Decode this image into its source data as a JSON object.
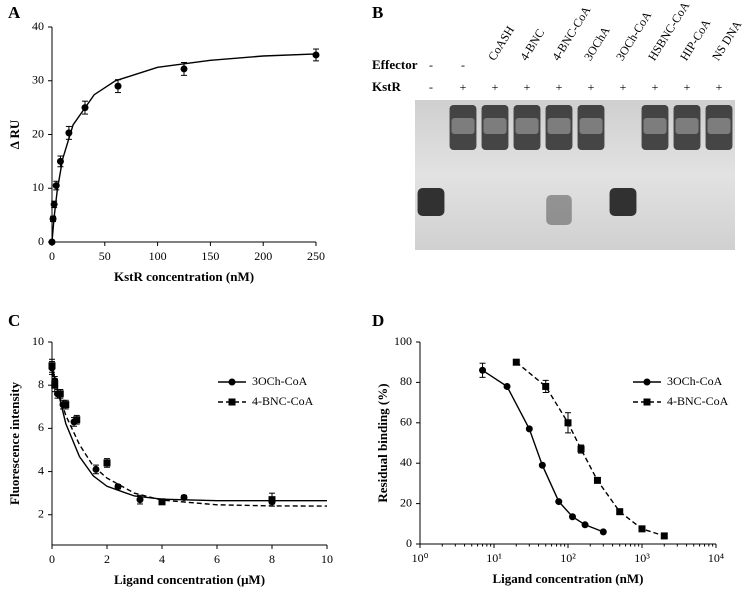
{
  "chart_data": [
    {
      "type": "scatter",
      "panel_label": "A",
      "x_label": "KstR concentration (nM)",
      "y_label": "Δ RU",
      "xlim": [
        0,
        250
      ],
      "xticks": [
        0,
        50,
        100,
        150,
        200,
        250
      ],
      "ylim": [
        0,
        40
      ],
      "yticks": [
        0,
        10,
        20,
        30,
        40
      ],
      "series": [
        {
          "color": "#000000",
          "marker": "circle",
          "dash": false,
          "x": [
            0,
            1,
            2,
            4,
            8,
            16,
            31.25,
            62.5,
            125,
            250
          ],
          "values": [
            0,
            4.3,
            7,
            10.5,
            15,
            20.3,
            25,
            29,
            32.2,
            34.8
          ],
          "errors": [
            0.3,
            0.5,
            0.6,
            0.8,
            1,
            1.2,
            1.2,
            1.2,
            1.2,
            1.1
          ],
          "fit": {
            "x": [
              0,
              2,
              5,
              10,
              20,
              40,
              60,
              100,
              150,
              200,
              250
            ],
            "values": [
              0,
              4.6,
              9.7,
              15.4,
              21.8,
              27.4,
              30,
              32.5,
              33.8,
              34.6,
              35
            ]
          }
        }
      ]
    },
    {
      "type": "gel",
      "panel_label": "B",
      "row_labels": [
        "Effector",
        "KstR"
      ],
      "lanes": [
        {
          "effector": "-",
          "kstr": "-"
        },
        {
          "effector": "-",
          "kstr": "+"
        },
        {
          "effector": "CoASH",
          "kstr": "+"
        },
        {
          "effector": "4-BNC",
          "kstr": "+"
        },
        {
          "effector": "4-BNC-CoA",
          "kstr": "+"
        },
        {
          "effector": "3OChA",
          "kstr": "+"
        },
        {
          "effector": "3OCh-CoA",
          "kstr": "+"
        },
        {
          "effector": "HSBNC-CoA",
          "kstr": "+"
        },
        {
          "effector": "HIP-CoA",
          "kstr": "+"
        },
        {
          "effector": "NS DNA",
          "kstr": "+"
        }
      ]
    },
    {
      "type": "scatter",
      "panel_label": "C",
      "x_label": "Ligand concentration (μM)",
      "y_label": "Fluorescence intensity",
      "xlim": [
        0,
        10
      ],
      "xticks": [
        0,
        2,
        4,
        6,
        8,
        10
      ],
      "ylim": [
        0.6,
        10
      ],
      "yticks": [
        2,
        4,
        6,
        8,
        10
      ],
      "series": [
        {
          "name": "3OCh-CoA",
          "color": "#000000",
          "marker": "circle",
          "dash": false,
          "x": [
            0,
            0.1,
            0.2,
            0.4,
            0.8,
            1.6,
            2.4,
            3.2,
            4.8,
            8
          ],
          "values": [
            8.8,
            8.2,
            7.6,
            7.1,
            6.3,
            4.1,
            3.3,
            2.7,
            2.8,
            2.6
          ],
          "errors": [
            0.3,
            0.2,
            0.2,
            0.2,
            0.2,
            0.2,
            0.1,
            0.2,
            0.1,
            0.1
          ],
          "fit": {
            "x": [
              0,
              0.5,
              1,
              1.5,
              2,
              3,
              4,
              6,
              8,
              10
            ],
            "values": [
              8.85,
              6.22,
              4.69,
              3.8,
              3.32,
              2.87,
              2.72,
              2.65,
              2.65,
              2.65
            ]
          }
        },
        {
          "name": "4-BNC-CoA",
          "color": "#000000",
          "marker": "square",
          "dash": true,
          "x": [
            0,
            0.1,
            0.3,
            0.5,
            0.9,
            2,
            4,
            8
          ],
          "values": [
            8.9,
            8,
            7.6,
            7.1,
            6.4,
            4.4,
            2.6,
            2.7
          ],
          "errors": [
            0.3,
            0.3,
            0.2,
            0.2,
            0.2,
            0.2,
            0.1,
            0.3
          ],
          "fit": {
            "x": [
              0,
              0.5,
              1,
              1.5,
              2,
              3,
              4,
              6,
              8,
              10
            ],
            "values": [
              8.6,
              6.6,
              5.25,
              4.25,
              3.7,
              3,
              2.68,
              2.46,
              2.41,
              2.4
            ]
          }
        }
      ]
    },
    {
      "type": "scatter",
      "panel_label": "D",
      "x_label": "Ligand concentration (nM)",
      "y_label": "Residual binding (%)",
      "log_x": true,
      "xlim": [
        1,
        10000
      ],
      "xticks": [
        {
          "value": 1,
          "label": "10⁰"
        },
        {
          "value": 10,
          "label": "10¹"
        },
        {
          "value": 100,
          "label": "10²"
        },
        {
          "value": 1000,
          "label": "10³"
        },
        {
          "value": 10000,
          "label": "10⁴"
        }
      ],
      "ylim": [
        0,
        100
      ],
      "yticks": [
        0,
        20,
        40,
        60,
        80,
        100
      ],
      "series": [
        {
          "name": "3OCh-CoA",
          "color": "#000000",
          "marker": "circle",
          "dash": false,
          "x": [
            7,
            15,
            30,
            45,
            75,
            115,
            170,
            300
          ],
          "values": [
            86,
            78,
            57,
            39,
            21,
            13.5,
            9.5,
            6
          ],
          "errors": [
            3.5,
            0.5,
            0.5,
            0.5,
            0.5,
            0.5,
            0.5,
            0.5
          ]
        },
        {
          "name": "4-BNC-CoA",
          "color": "#000000",
          "marker": "square",
          "dash": true,
          "x": [
            20,
            50,
            100,
            150,
            250,
            500,
            1000,
            2000
          ],
          "values": [
            90,
            78,
            60,
            47,
            31.5,
            16,
            7.5,
            4
          ],
          "errors": [
            1,
            3,
            5,
            2,
            0.5,
            0.5,
            0.5,
            0.5
          ]
        }
      ]
    }
  ]
}
